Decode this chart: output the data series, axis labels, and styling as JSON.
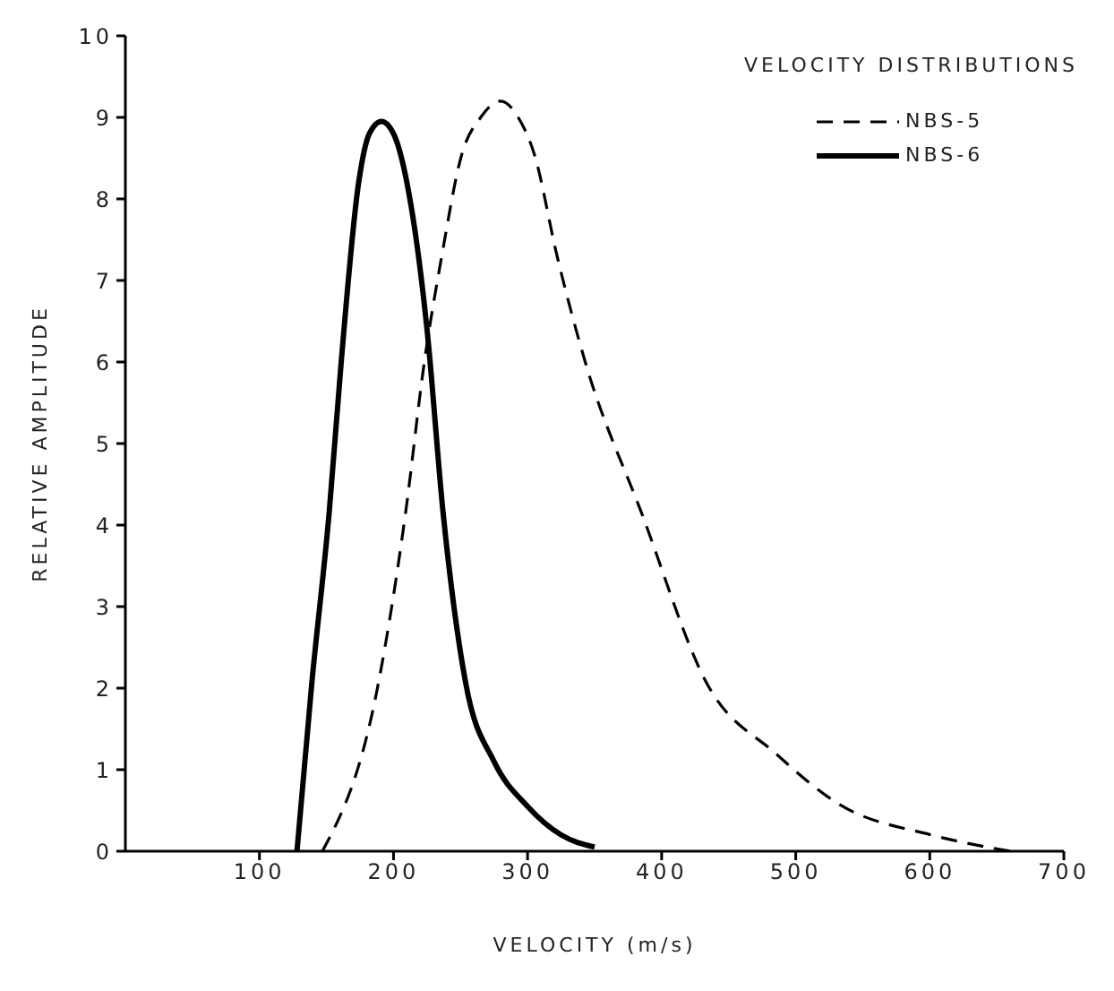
{
  "chart_data": {
    "type": "line",
    "xlabel": "VELOCITY (m/s)",
    "ylabel": "RELATIVE AMPLITUDE",
    "legend_title": "VELOCITY DISTRIBUTIONS",
    "xlim": [
      0,
      700
    ],
    "xticks": [
      100,
      200,
      300,
      400,
      500,
      600,
      700
    ],
    "ylim": [
      0,
      10
    ],
    "yticks": [
      0,
      1,
      2,
      3,
      4,
      5,
      6,
      7,
      8,
      9,
      10
    ],
    "grid": false,
    "legend": "top right",
    "marker": "none",
    "series": [
      {
        "name": "NBS-5",
        "color": "#000000",
        "line_style": "dashed",
        "x": [
          147,
          188,
          209,
          223,
          236,
          251,
          265,
          280,
          293,
          305,
          322,
          343,
          385,
          434,
          485,
          533,
          601,
          660
        ],
        "values": [
          0,
          2,
          4.15,
          6,
          7.3,
          8.55,
          9.0,
          9.2,
          9.0,
          8.55,
          7.3,
          6,
          4.15,
          2.05,
          1.2,
          0.57,
          0.2,
          0
        ]
      },
      {
        "name": "NBS-6",
        "color": "#000000",
        "line_style": "solid",
        "x": [
          128,
          139,
          152,
          161,
          174,
          182,
          191,
          200,
          210,
          225,
          237,
          254,
          275,
          300,
          325,
          350
        ],
        "values": [
          0,
          2.05,
          4.15,
          6,
          8.2,
          8.8,
          8.95,
          8.8,
          8.2,
          6.4,
          4.15,
          2.05,
          1.1,
          0.55,
          0.2,
          0.05
        ]
      }
    ]
  }
}
